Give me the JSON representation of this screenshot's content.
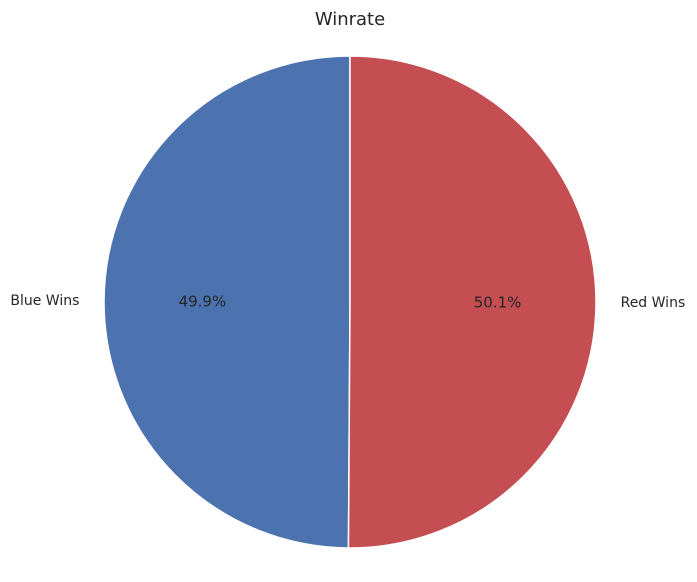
{
  "chart_data": {
    "type": "pie",
    "title": "Winrate",
    "slices": [
      {
        "label": "Blue Wins",
        "value": 49.9,
        "pct_label": "49.9%",
        "color": "#4C72B0"
      },
      {
        "label": "Red Wins",
        "value": 50.1,
        "pct_label": "50.1%",
        "color": "#C44E52"
      }
    ],
    "start_angle_deg": 90,
    "direction": "counterclockwise",
    "wedge_edge_color": "#ffffff"
  }
}
